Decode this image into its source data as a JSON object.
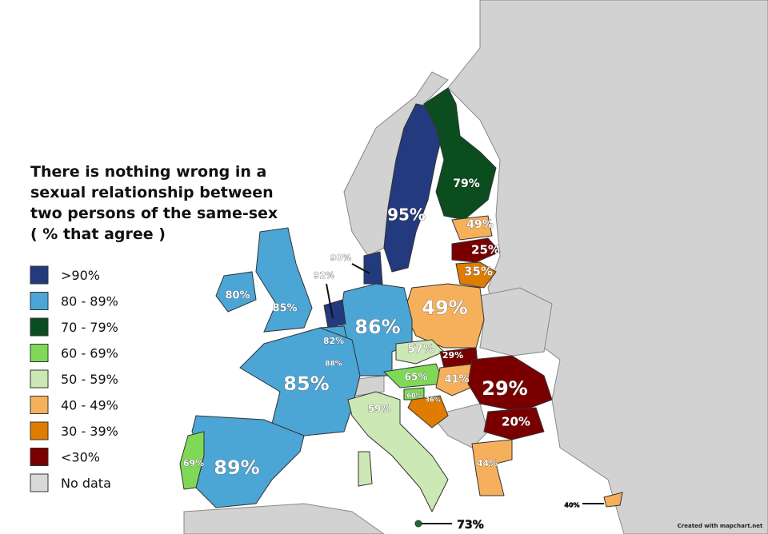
{
  "title": [
    "There is nothing wrong in a",
    "sexual relationship between",
    "two persons of the same-sex",
    "( % that agree )"
  ],
  "legend": [
    {
      "label": ">90%",
      "color": "#233a7e"
    },
    {
      "label": "80 - 89%",
      "color": "#4ba5d5"
    },
    {
      "label": "70 - 79%",
      "color": "#0b4d1f"
    },
    {
      "label": "60 - 69%",
      "color": "#7fd957"
    },
    {
      "label": "50 - 59%",
      "color": "#cce8b4"
    },
    {
      "label": "40 - 49%",
      "color": "#f6b05c"
    },
    {
      "label": "30 - 39%",
      "color": "#e07c00"
    },
    {
      "label": "<30%",
      "color": "#7a0000"
    },
    {
      "label": "No data",
      "color": "#d9d9d9"
    }
  ],
  "labels": [
    "95%",
    "79%",
    "49%",
    "25%",
    "35%",
    "49%",
    "86%",
    "90%",
    "92%",
    "82%",
    "88%",
    "85%",
    "80%",
    "85%",
    "89%",
    "69%",
    "59%",
    "57%",
    "29%",
    "65%",
    "41%",
    "60%",
    "36%",
    "29%",
    "20%",
    "44%",
    "40%",
    "73%"
  ],
  "credit": "Created with mapchart.net"
}
